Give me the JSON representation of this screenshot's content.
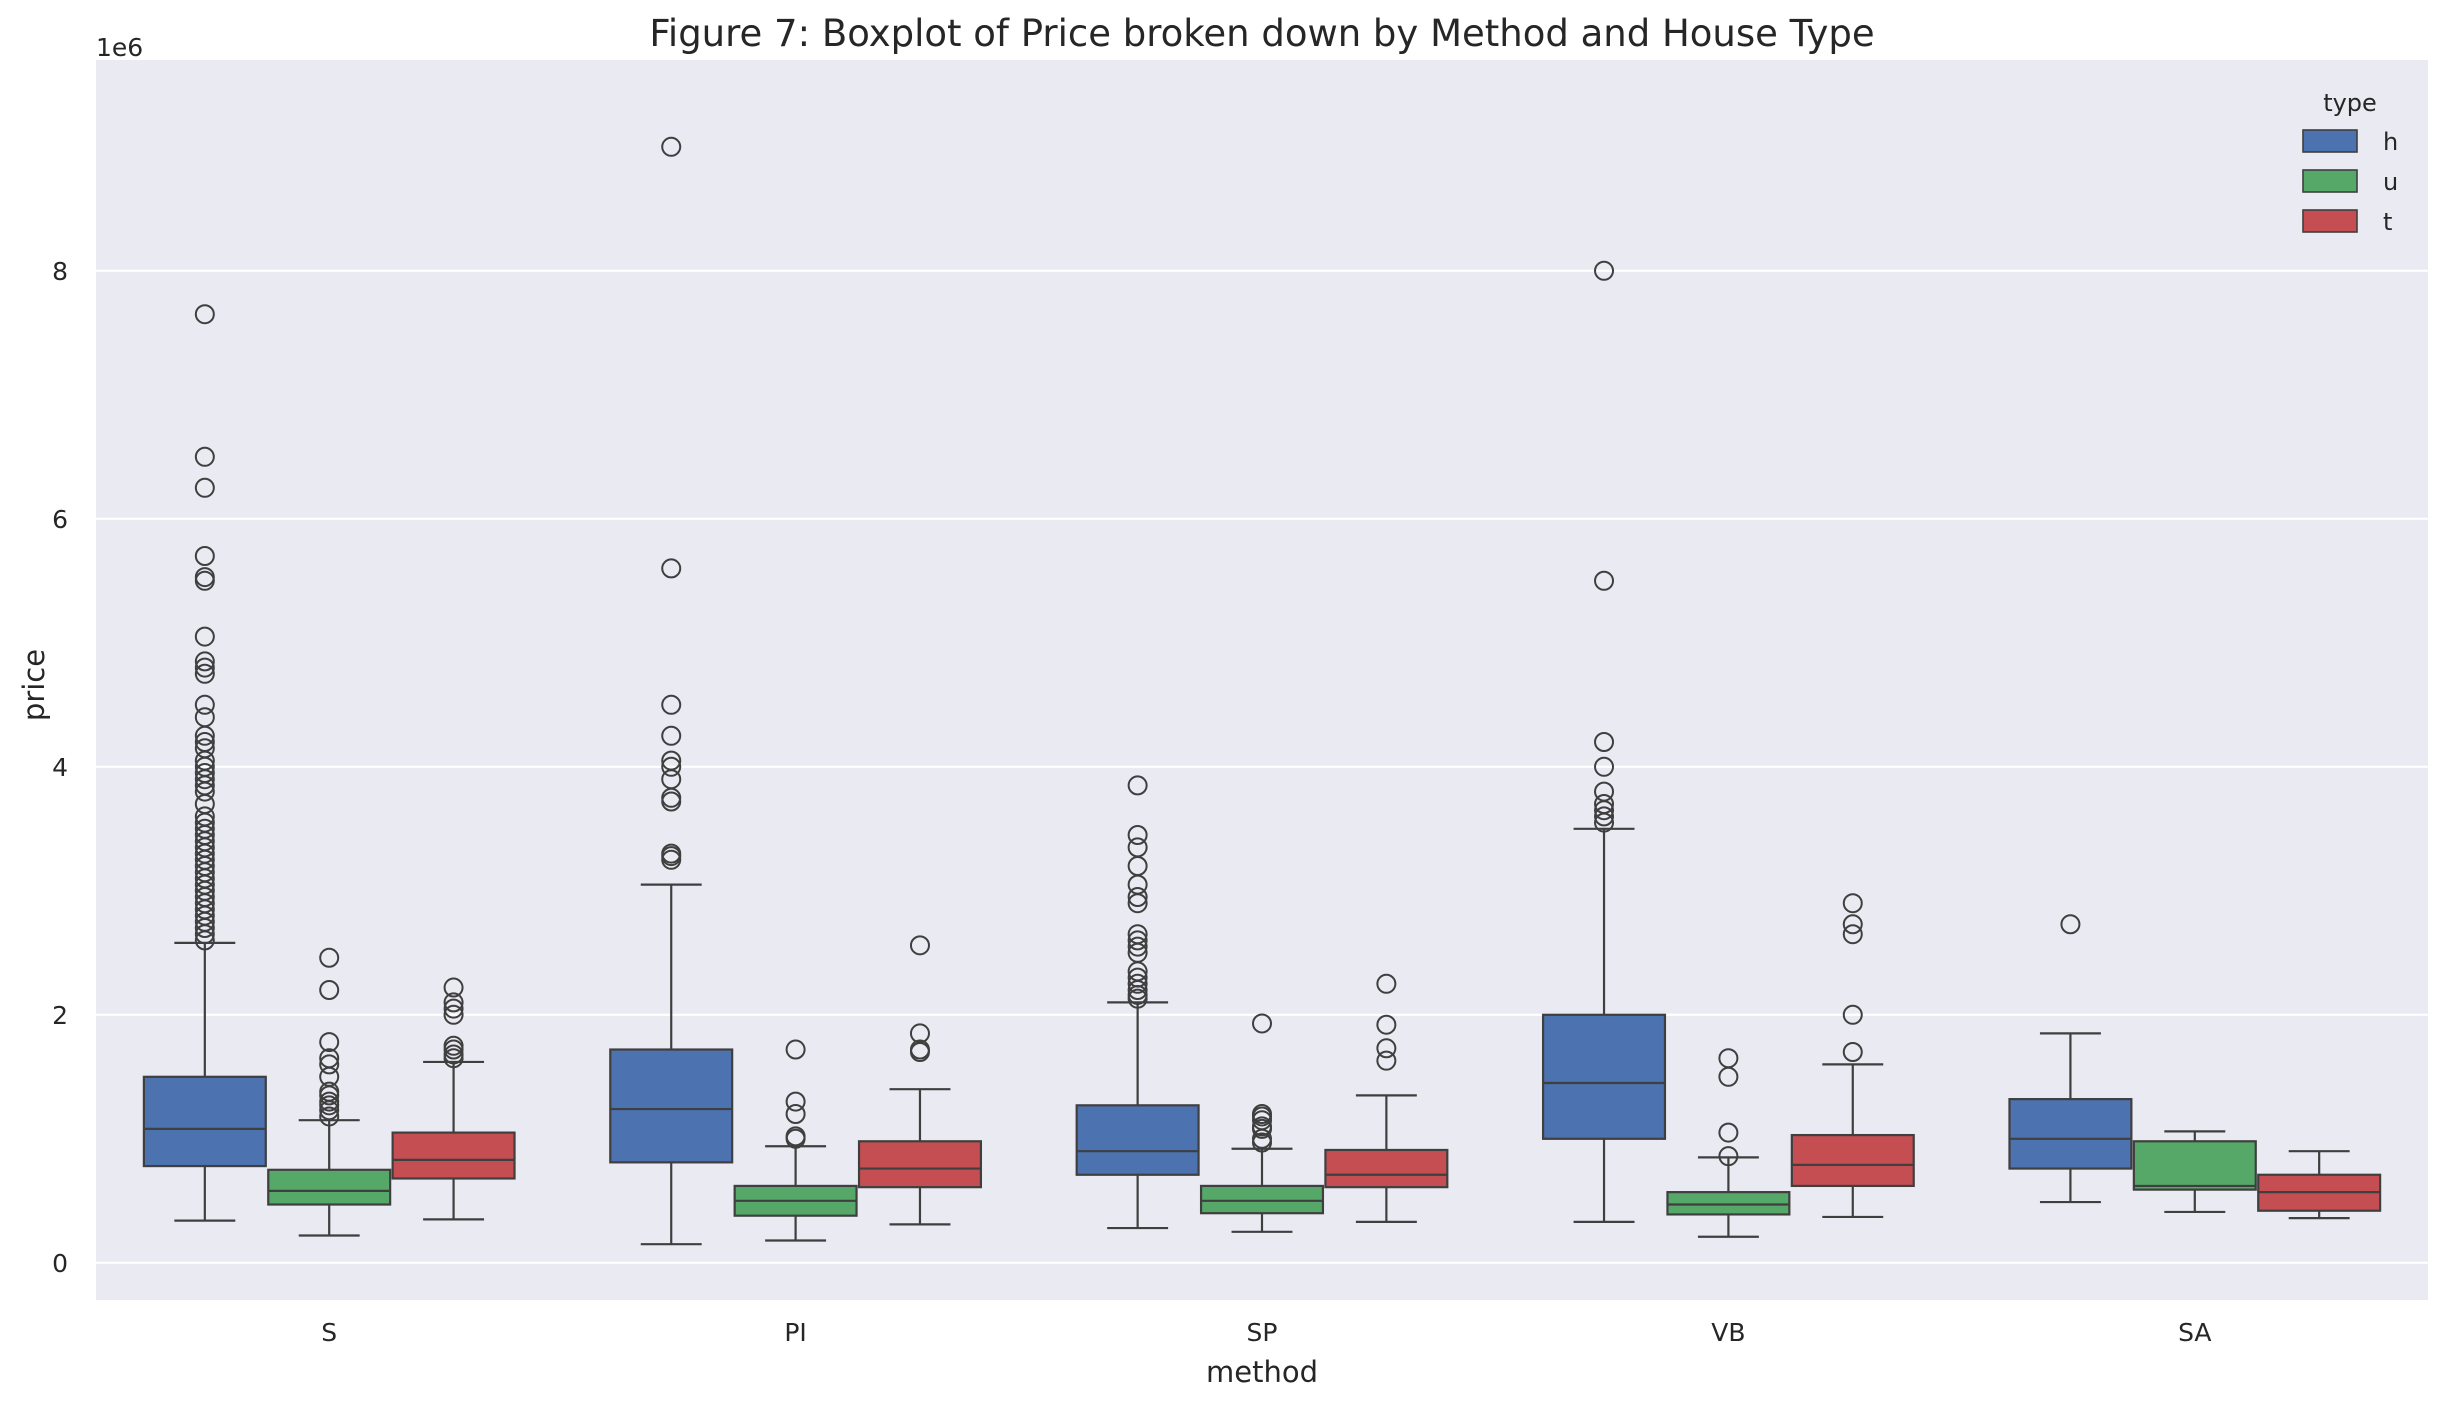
{
  "chart_data": {
    "type": "box",
    "title": "Figure 7: Boxplot of Price broken down by Method and House Type",
    "xlabel": "method",
    "ylabel": "price",
    "y_offset_text": "1e6",
    "ylim": [
      -300000,
      9700000
    ],
    "yticks": [
      0,
      2000000,
      4000000,
      6000000,
      8000000
    ],
    "ytick_labels": [
      "0",
      "2",
      "4",
      "6",
      "8"
    ],
    "grid": true,
    "legend_position": "top-right",
    "legend_title": "type",
    "categories": [
      "S",
      "PI",
      "SP",
      "VB",
      "SA"
    ],
    "series": [
      {
        "name": "h",
        "color": "#4c72b0",
        "boxes": [
          {
            "whislo": 340000,
            "q1": 780000,
            "med": 1080000,
            "q3": 1500000,
            "whishi": 2580000,
            "fliers": [
              2600000,
              2650000,
              2700000,
              2750000,
              2800000,
              2850000,
              2900000,
              2950000,
              3000000,
              3050000,
              3100000,
              3150000,
              3200000,
              3250000,
              3300000,
              3350000,
              3400000,
              3450000,
              3500000,
              3550000,
              3600000,
              3700000,
              3800000,
              3850000,
              3900000,
              3950000,
              4000000,
              4050000,
              4150000,
              4200000,
              4250000,
              4400000,
              4500000,
              4750000,
              4800000,
              4850000,
              5050000,
              5500000,
              5530000,
              5700000,
              6250000,
              6500000,
              7650000
            ]
          },
          {
            "whislo": 150000,
            "q1": 810000,
            "med": 1240000,
            "q3": 1720000,
            "whishi": 3050000,
            "fliers": [
              3250000,
              3280000,
              3300000,
              3720000,
              3750000,
              3900000,
              4000000,
              4050000,
              4250000,
              4500000,
              5600000,
              9000000
            ]
          },
          {
            "whislo": 280000,
            "q1": 710000,
            "med": 900000,
            "q3": 1270000,
            "whishi": 2100000,
            "fliers": [
              2130000,
              2160000,
              2200000,
              2250000,
              2300000,
              2350000,
              2500000,
              2550000,
              2600000,
              2650000,
              2900000,
              2950000,
              3050000,
              3200000,
              3350000,
              3450000,
              3850000
            ]
          },
          {
            "whislo": 330000,
            "q1": 1000000,
            "med": 1450000,
            "q3": 2000000,
            "whishi": 3500000,
            "fliers": [
              3550000,
              3600000,
              3650000,
              3700000,
              3800000,
              4000000,
              4200000,
              5500000,
              8000000
            ]
          },
          {
            "whislo": 490000,
            "q1": 760000,
            "med": 1000000,
            "q3": 1320000,
            "whishi": 1850000,
            "fliers": [
              2730000
            ]
          }
        ]
      },
      {
        "name": "u",
        "color": "#55a868",
        "boxes": [
          {
            "whislo": 220000,
            "q1": 470000,
            "med": 580000,
            "q3": 750000,
            "whishi": 1150000,
            "fliers": [
              1180000,
              1230000,
              1270000,
              1300000,
              1350000,
              1380000,
              1500000,
              1600000,
              1650000,
              1780000,
              2200000,
              2460000
            ]
          },
          {
            "whislo": 180000,
            "q1": 380000,
            "med": 500000,
            "q3": 620000,
            "whishi": 940000,
            "fliers": [
              1000000,
              1020000,
              1200000,
              1300000,
              1720000
            ]
          },
          {
            "whislo": 250000,
            "q1": 400000,
            "med": 500000,
            "q3": 620000,
            "whishi": 920000,
            "fliers": [
              970000,
              1000000,
              1080000,
              1100000,
              1150000,
              1180000,
              1200000,
              1930000
            ]
          },
          {
            "whislo": 210000,
            "q1": 390000,
            "med": 470000,
            "q3": 570000,
            "whishi": 850000,
            "fliers": [
              860000,
              1050000,
              1500000,
              1650000
            ]
          },
          {
            "whislo": 410000,
            "q1": 590000,
            "med": 620000,
            "q3": 980000,
            "whishi": 1060000,
            "fliers": []
          }
        ]
      },
      {
        "name": "t",
        "color": "#c44e52",
        "boxes": [
          {
            "whislo": 350000,
            "q1": 680000,
            "med": 830000,
            "q3": 1050000,
            "whishi": 1620000,
            "fliers": [
              1650000,
              1680000,
              1720000,
              1750000,
              2000000,
              2050000,
              2100000,
              2220000
            ]
          },
          {
            "whislo": 310000,
            "q1": 610000,
            "med": 760000,
            "q3": 980000,
            "whishi": 1400000,
            "fliers": [
              1700000,
              1720000,
              1850000,
              2560000
            ]
          },
          {
            "whislo": 330000,
            "q1": 610000,
            "med": 710000,
            "q3": 910000,
            "whishi": 1350000,
            "fliers": [
              1630000,
              1730000,
              1920000,
              2250000
            ]
          },
          {
            "whislo": 370000,
            "q1": 620000,
            "med": 790000,
            "q3": 1030000,
            "whishi": 1600000,
            "fliers": [
              1700000,
              2000000,
              2650000,
              2730000,
              2900000
            ]
          },
          {
            "whislo": 360000,
            "q1": 420000,
            "med": 570000,
            "q3": 710000,
            "whishi": 900000,
            "fliers": []
          }
        ]
      }
    ]
  }
}
